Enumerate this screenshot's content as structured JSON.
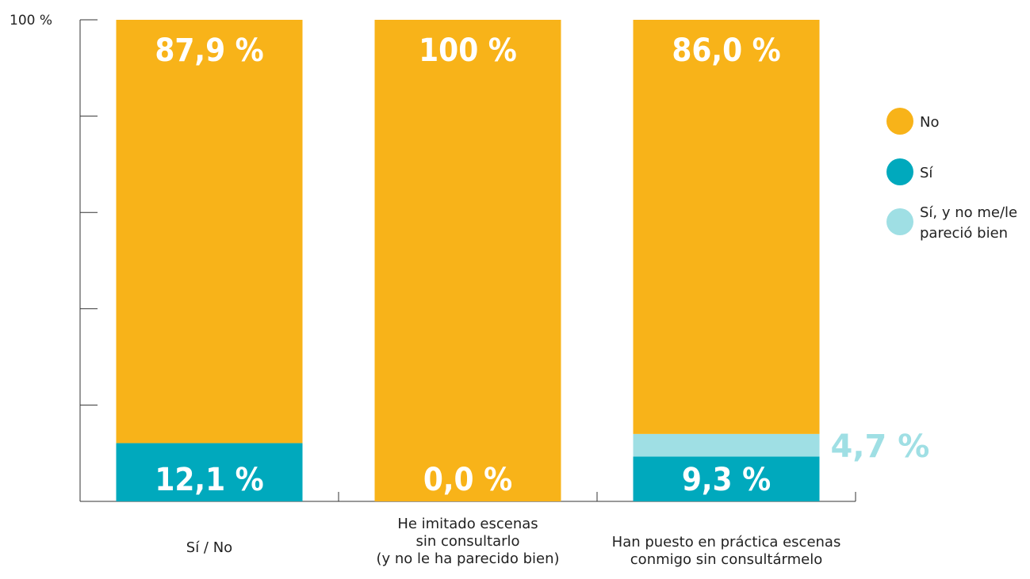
{
  "chart_data": {
    "type": "bar",
    "stacked": true,
    "orientation": "vertical",
    "ylim": [
      0,
      100
    ],
    "y_tick_step": 20,
    "y_tick_labels": [
      {
        "value": 100,
        "label": "100 %"
      }
    ],
    "grid": false,
    "legend_position": "right",
    "categories": [
      [
        "Sí / No"
      ],
      [
        "He imitado escenas",
        "sin consultarlo",
        "(y no le ha parecido bien)"
      ],
      [
        "Han puesto en práctica escenas",
        "conmigo sin consultármelo"
      ]
    ],
    "series": [
      {
        "name": "Sí",
        "color": "#00a9bd",
        "values": [
          12.1,
          0.0,
          9.3
        ],
        "labels": [
          "12,1 %",
          "0,0 %",
          "9,3 %"
        ]
      },
      {
        "name": "Sí, y no me/le pareció bien",
        "color": "#9fdfe4",
        "values": [
          0,
          0,
          4.7
        ],
        "labels": [
          "",
          "",
          "4,7 %"
        ]
      },
      {
        "name": "No",
        "color": "#f8b319",
        "values": [
          87.9,
          100,
          86.0
        ],
        "labels": [
          "87,9 %",
          "100 %",
          "86,0 %"
        ]
      }
    ],
    "legend": [
      {
        "name": "No",
        "lines": [
          "No"
        ],
        "color": "#f8b319"
      },
      {
        "name": "Sí",
        "lines": [
          "Sí"
        ],
        "color": "#00a9bd"
      },
      {
        "name": "Sí, y no me/le pareció bien",
        "lines": [
          "Sí, y no me/le",
          "pareció bien"
        ],
        "color": "#9fdfe4"
      }
    ]
  }
}
